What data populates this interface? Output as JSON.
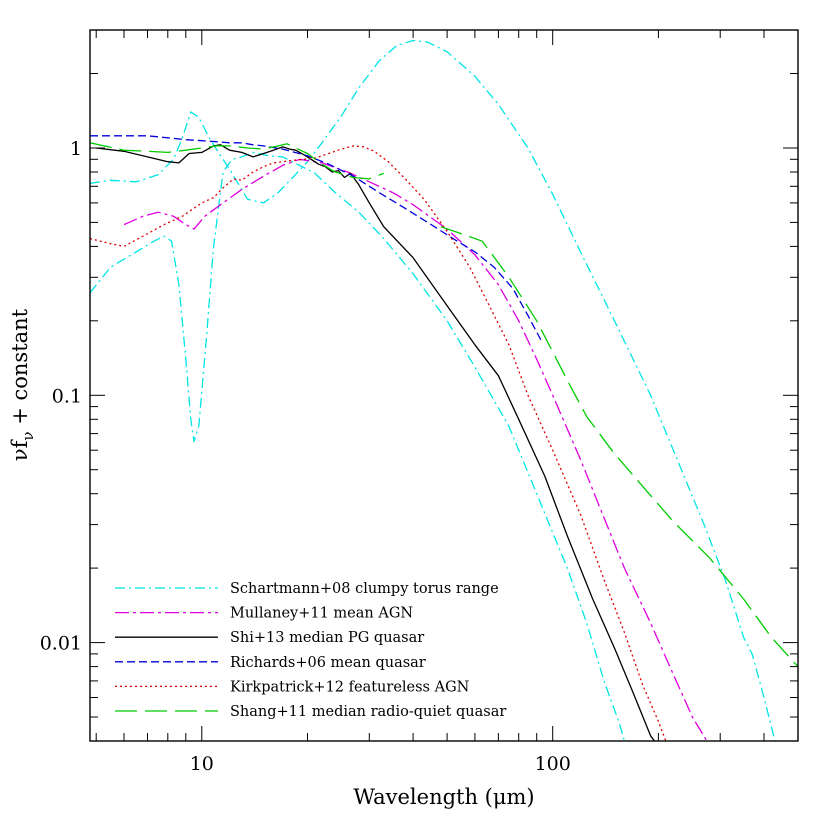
{
  "chart_data": {
    "type": "line",
    "title": "",
    "xlabel": "Wavelength (μm)",
    "ylabel": "νf_ν + constant",
    "xscale": "log",
    "yscale": "log",
    "xlim": [
      4.8,
      500
    ],
    "ylim": [
      0.004,
      3.0
    ],
    "x_ticks": [
      {
        "value": 10,
        "label": "10"
      },
      {
        "value": 100,
        "label": "100"
      }
    ],
    "y_ticks": [
      {
        "value": 0.01,
        "label": "0.01"
      },
      {
        "value": 0.1,
        "label": "0.1"
      },
      {
        "value": 1,
        "label": "1"
      }
    ],
    "grid": false,
    "legend_position": "bottom-left",
    "series": [
      {
        "name": "Schartmann+08 clumpy torus range",
        "color": "#00e5e5",
        "dash": "10 4 2 4",
        "width": 1.3,
        "segments": [
          [
            [
              4.8,
              0.72
            ],
            [
              5.5,
              0.74
            ],
            [
              6.5,
              0.73
            ],
            [
              7.5,
              0.78
            ],
            [
              8.3,
              0.9
            ],
            [
              8.8,
              1.1
            ],
            [
              9.3,
              1.4
            ],
            [
              9.8,
              1.33
            ],
            [
              10.5,
              1.1
            ],
            [
              11.2,
              0.95
            ],
            [
              12,
              0.82
            ],
            [
              13.5,
              0.62
            ],
            [
              15,
              0.6
            ],
            [
              16.5,
              0.66
            ],
            [
              18,
              0.75
            ],
            [
              20,
              0.88
            ],
            [
              22,
              1.05
            ],
            [
              25,
              1.35
            ],
            [
              28,
              1.75
            ],
            [
              32,
              2.25
            ],
            [
              36,
              2.6
            ],
            [
              40,
              2.72
            ],
            [
              44,
              2.68
            ],
            [
              50,
              2.45
            ],
            [
              60,
              1.95
            ],
            [
              70,
              1.5
            ],
            [
              85,
              1.0
            ],
            [
              100,
              0.65
            ],
            [
              120,
              0.38
            ],
            [
              150,
              0.2
            ],
            [
              190,
              0.1
            ],
            [
              230,
              0.052
            ],
            [
              270,
              0.03
            ],
            [
              310,
              0.018
            ],
            [
              350,
              0.0105
            ],
            [
              370,
              0.009
            ],
            [
              400,
              0.006
            ],
            [
              430,
              0.004
            ]
          ],
          [
            [
              4.8,
              0.26
            ],
            [
              5.5,
              0.33
            ],
            [
              6.5,
              0.38
            ],
            [
              7.3,
              0.42
            ],
            [
              7.8,
              0.44
            ],
            [
              8.2,
              0.42
            ],
            [
              8.6,
              0.28
            ],
            [
              9.0,
              0.14
            ],
            [
              9.3,
              0.08
            ],
            [
              9.5,
              0.065
            ],
            [
              9.8,
              0.075
            ],
            [
              10.3,
              0.17
            ],
            [
              10.8,
              0.4
            ],
            [
              11.5,
              0.8
            ],
            [
              12.2,
              0.9
            ],
            [
              13,
              0.92
            ],
            [
              14,
              0.96
            ],
            [
              15.5,
              0.93
            ],
            [
              17,
              0.92
            ],
            [
              19,
              0.85
            ],
            [
              21,
              0.79
            ],
            [
              24,
              0.66
            ],
            [
              28,
              0.55
            ],
            [
              33,
              0.43
            ],
            [
              40,
              0.31
            ],
            [
              50,
              0.2
            ],
            [
              60,
              0.13
            ],
            [
              75,
              0.075
            ],
            [
              90,
              0.04
            ],
            [
              110,
              0.02
            ],
            [
              125,
              0.012
            ],
            [
              140,
              0.007
            ],
            [
              155,
              0.0047
            ],
            [
              160,
              0.004
            ]
          ]
        ]
      },
      {
        "name": "Mullaney+11 mean AGN",
        "color": "#e000e0",
        "dash": "14 4 3 4",
        "width": 1.3,
        "segments": [
          [
            [
              6.0,
              0.49
            ],
            [
              6.8,
              0.53
            ],
            [
              7.5,
              0.55
            ],
            [
              8.3,
              0.53
            ],
            [
              9.0,
              0.49
            ],
            [
              9.5,
              0.47
            ],
            [
              10.2,
              0.53
            ],
            [
              11.5,
              0.6
            ],
            [
              13,
              0.68
            ],
            [
              15,
              0.77
            ],
            [
              17,
              0.85
            ],
            [
              19,
              0.9
            ],
            [
              22,
              0.87
            ],
            [
              26,
              0.8
            ],
            [
              30,
              0.73
            ],
            [
              35,
              0.66
            ],
            [
              40,
              0.59
            ],
            [
              50,
              0.47
            ],
            [
              60,
              0.37
            ],
            [
              70,
              0.28
            ],
            [
              80,
              0.2
            ],
            [
              90,
              0.14
            ],
            [
              100,
              0.1
            ],
            [
              120,
              0.055
            ],
            [
              140,
              0.032
            ],
            [
              160,
              0.02
            ],
            [
              190,
              0.012
            ],
            [
              220,
              0.0075
            ],
            [
              250,
              0.005
            ],
            [
              275,
              0.004
            ]
          ]
        ]
      },
      {
        "name": "Shi+13 median PG quasar",
        "color": "#000000",
        "dash": "",
        "width": 1.3,
        "segments": [
          [
            [
              5.0,
              1.0
            ],
            [
              6.0,
              0.97
            ],
            [
              7.0,
              0.92
            ],
            [
              8.0,
              0.88
            ],
            [
              8.6,
              0.87
            ],
            [
              9.2,
              0.95
            ],
            [
              10.0,
              0.96
            ],
            [
              10.8,
              1.02
            ],
            [
              11.3,
              1.03
            ],
            [
              12,
              0.98
            ],
            [
              13,
              0.96
            ],
            [
              14,
              0.92
            ],
            [
              15,
              0.95
            ],
            [
              16,
              0.98
            ],
            [
              17,
              1.01
            ],
            [
              17.8,
              0.99
            ],
            [
              18.5,
              0.98
            ],
            [
              19.5,
              0.94
            ],
            [
              20.5,
              0.9
            ],
            [
              21.5,
              0.86
            ],
            [
              22.5,
              0.84
            ],
            [
              23.5,
              0.8
            ],
            [
              24.5,
              0.81
            ],
            [
              25.5,
              0.76
            ],
            [
              26.5,
              0.79
            ],
            [
              28,
              0.71
            ],
            [
              30,
              0.6
            ],
            [
              33,
              0.48
            ],
            [
              40,
              0.36
            ],
            [
              50,
              0.23
            ],
            [
              60,
              0.16
            ],
            [
              70,
              0.12
            ],
            [
              80,
              0.08
            ],
            [
              95,
              0.047
            ],
            [
              110,
              0.027
            ],
            [
              130,
              0.015
            ],
            [
              150,
              0.0095
            ],
            [
              170,
              0.0062
            ],
            [
              190,
              0.0042
            ],
            [
              195,
              0.004
            ]
          ]
        ]
      },
      {
        "name": "Richards+06 mean quasar",
        "color": "#0000dd",
        "dash": "8 4",
        "width": 1.3,
        "segments": [
          [
            [
              4.8,
              1.12
            ],
            [
              6.0,
              1.12
            ],
            [
              7.0,
              1.12
            ],
            [
              8.0,
              1.1
            ],
            [
              9.0,
              1.08
            ],
            [
              10,
              1.07
            ],
            [
              11,
              1.06
            ],
            [
              12,
              1.05
            ],
            [
              13,
              1.05
            ],
            [
              14,
              1.03
            ],
            [
              15,
              1.02
            ],
            [
              17,
              0.99
            ],
            [
              20,
              0.93
            ],
            [
              23,
              0.86
            ],
            [
              27,
              0.77
            ],
            [
              32,
              0.66
            ],
            [
              38,
              0.57
            ],
            [
              45,
              0.49
            ],
            [
              52,
              0.43
            ],
            [
              60,
              0.38
            ],
            [
              68,
              0.33
            ],
            [
              77,
              0.27
            ],
            [
              85,
              0.21
            ],
            [
              93,
              0.165
            ]
          ]
        ]
      },
      {
        "name": "Kirkpatrick+12 featureless AGN",
        "color": "#dd0000",
        "dash": "2 3",
        "width": 1.3,
        "segments": [
          [
            [
              4.8,
              0.43
            ],
            [
              5.5,
              0.41
            ],
            [
              6.0,
              0.4
            ],
            [
              6.6,
              0.43
            ],
            [
              7.2,
              0.46
            ],
            [
              7.8,
              0.49
            ],
            [
              8.3,
              0.51
            ],
            [
              8.8,
              0.53
            ],
            [
              9.3,
              0.56
            ],
            [
              10.0,
              0.6
            ],
            [
              10.8,
              0.63
            ],
            [
              11.5,
              0.69
            ],
            [
              12.3,
              0.75
            ],
            [
              13,
              0.74
            ],
            [
              14,
              0.8
            ],
            [
              15,
              0.84
            ],
            [
              16,
              0.87
            ],
            [
              17,
              0.88
            ],
            [
              18,
              0.89
            ],
            [
              19.5,
              0.9
            ],
            [
              21,
              0.91
            ],
            [
              23,
              0.95
            ],
            [
              25,
              0.99
            ],
            [
              27,
              1.02
            ],
            [
              29,
              1.01
            ],
            [
              31,
              0.97
            ],
            [
              34,
              0.88
            ],
            [
              38,
              0.75
            ],
            [
              43,
              0.62
            ],
            [
              50,
              0.46
            ],
            [
              58,
              0.33
            ],
            [
              65,
              0.24
            ],
            [
              75,
              0.16
            ],
            [
              85,
              0.1
            ],
            [
              100,
              0.06
            ],
            [
              120,
              0.033
            ],
            [
              140,
              0.018
            ],
            [
              160,
              0.011
            ],
            [
              180,
              0.0068
            ],
            [
              200,
              0.0048
            ],
            [
              210,
              0.004
            ]
          ]
        ]
      },
      {
        "name": "Shang+11 median radio-quiet quasar",
        "color": "#00cc00",
        "dash": "22 8",
        "width": 1.3,
        "segments": [
          [
            [
              4.8,
              1.05
            ],
            [
              6.0,
              0.98
            ],
            [
              7.0,
              0.97
            ],
            [
              8.0,
              0.96
            ],
            [
              9.0,
              0.98
            ],
            [
              10.0,
              1.0
            ],
            [
              11.0,
              1.02
            ],
            [
              12.0,
              1.02
            ],
            [
              13.5,
              1.0
            ],
            [
              15.0,
              0.99
            ],
            [
              16.5,
              1.02
            ],
            [
              17.5,
              1.04
            ],
            [
              18.5,
              1.0
            ],
            [
              20,
              0.95
            ],
            [
              22,
              0.86
            ],
            [
              24,
              0.8
            ],
            [
              27,
              0.76
            ],
            [
              30,
              0.75
            ],
            [
              33,
              0.79
            ]
          ],
          [
            [
              48,
              0.48
            ],
            [
              55,
              0.45
            ],
            [
              63,
              0.42
            ],
            [
              75,
              0.3
            ],
            [
              90,
              0.2
            ],
            [
              110,
              0.115
            ],
            [
              125,
              0.082
            ],
            [
              150,
              0.058
            ],
            [
              180,
              0.043
            ],
            [
              220,
              0.031
            ],
            [
              280,
              0.022
            ],
            [
              350,
              0.015
            ],
            [
              420,
              0.0105
            ],
            [
              480,
              0.0085
            ],
            [
              500,
              0.008
            ]
          ]
        ]
      }
    ]
  }
}
